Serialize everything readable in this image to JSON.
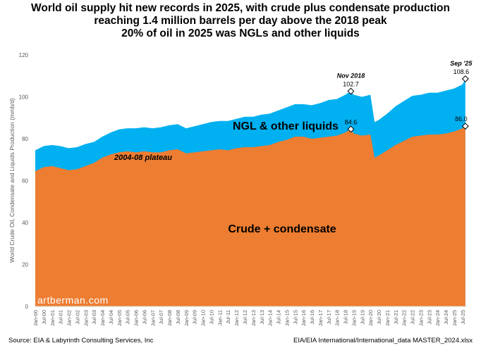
{
  "title_lines": [
    "World oil supply hit new records in 2025, with crude plus condensate production",
    "reaching 1.4 million barrels per day above the 2018 peak",
    "20% of oil in 2025 was NGLs and other liquids"
  ],
  "source": "Source: EIA &  Labyrinth Consulting Services, Inc",
  "file": "EIA/EIA International/International_data MASTER_2024.xlsx",
  "watermark": "artberman.com",
  "chart_data": {
    "type": "area",
    "ylabel": "World Crude Oil, Condensate and Liquids Production (mmb/d)",
    "ylim": [
      0,
      120
    ],
    "yticks": [
      0,
      20,
      40,
      60,
      80,
      100,
      120
    ],
    "grid": false,
    "xticks": [
      "Jan-00",
      "Jul-00",
      "Jan-01",
      "Jul-01",
      "Jan-02",
      "Jul-02",
      "Jan-03",
      "Jul-03",
      "Jan-04",
      "Jul-04",
      "Jan-05",
      "Jul-05",
      "Jan-06",
      "Jul-06",
      "Jan-07",
      "Jul-07",
      "Jan-08",
      "Jul-08",
      "Jan-09",
      "Jul-09",
      "Jan-10",
      "Jul-10",
      "Jan-11",
      "Jul-11",
      "Jan-12",
      "Jul-12",
      "Jan-13",
      "Jul-13",
      "Jan-14",
      "Jul-14",
      "Jan-15",
      "Jul-15",
      "Jan-16",
      "Jul-16",
      "Jan-17",
      "Jul-17",
      "Jan-18",
      "Jul-18",
      "Jan-19",
      "Jul-19",
      "Jan-20",
      "Jul-20",
      "Jan-21",
      "Jul-21",
      "Jan-22",
      "Jul-22",
      "Jan-23",
      "Jul-23",
      "Jan-24",
      "Jul-24",
      "Jan-25",
      "Jul-25"
    ],
    "x": [
      "2000-01",
      "2000-07",
      "2001-01",
      "2001-07",
      "2002-01",
      "2002-07",
      "2003-01",
      "2003-07",
      "2004-01",
      "2004-07",
      "2005-01",
      "2005-07",
      "2006-01",
      "2006-07",
      "2007-01",
      "2007-07",
      "2008-01",
      "2008-07",
      "2009-01",
      "2009-07",
      "2010-01",
      "2010-07",
      "2011-01",
      "2011-07",
      "2012-01",
      "2012-07",
      "2013-01",
      "2013-07",
      "2014-01",
      "2014-07",
      "2015-01",
      "2015-07",
      "2016-01",
      "2016-07",
      "2017-01",
      "2017-07",
      "2018-01",
      "2018-07",
      "2018-11",
      "2019-01",
      "2019-07",
      "2020-01",
      "2020-04",
      "2020-07",
      "2021-01",
      "2021-07",
      "2022-01",
      "2022-07",
      "2023-01",
      "2023-07",
      "2024-01",
      "2024-07",
      "2025-01",
      "2025-07",
      "2025-09"
    ],
    "series": [
      {
        "name": "NGL & other liquids",
        "color": "#00b0f0",
        "values": [
          74.5,
          76.5,
          77,
          76.5,
          75.5,
          76,
          77.5,
          78.5,
          81,
          83,
          84.5,
          85,
          85,
          85.5,
          85,
          85.5,
          86.5,
          87,
          85,
          86,
          87,
          88,
          88.5,
          88.5,
          89.5,
          90.5,
          90.5,
          91.5,
          92,
          93.5,
          95,
          96.5,
          96.5,
          96,
          97,
          98.5,
          99,
          101,
          102.7,
          101,
          100,
          101,
          88,
          89,
          92,
          95.5,
          98,
          100.5,
          101,
          102,
          102,
          103,
          104,
          106,
          108.6
        ]
      },
      {
        "name": "Crude + condensate",
        "color": "#ed7d31",
        "values": [
          64.5,
          66.5,
          67,
          66,
          65,
          65.5,
          67,
          68.5,
          71,
          72.5,
          73.5,
          74,
          73.5,
          74,
          73.5,
          73.5,
          74.5,
          75,
          73,
          73.5,
          74,
          74.5,
          75,
          74.5,
          75.5,
          76,
          76,
          76.5,
          77,
          78.5,
          79.5,
          81,
          81,
          80,
          80.5,
          81,
          81.5,
          83,
          84.6,
          82.5,
          81.5,
          82,
          71,
          72,
          74.5,
          77,
          79,
          81,
          81.5,
          82,
          82,
          82.5,
          83.5,
          85,
          86.0
        ]
      }
    ],
    "annotations": [
      {
        "text": "Nov 2018",
        "value": "102.7"
      },
      {
        "text": "84.6"
      },
      {
        "text": "Sep '25",
        "value": "108.6"
      },
      {
        "text": "86.0"
      },
      {
        "text": "NGL & other liquids"
      },
      {
        "text": "2004-08 plateau"
      },
      {
        "text": "Crude + condensate"
      }
    ]
  }
}
